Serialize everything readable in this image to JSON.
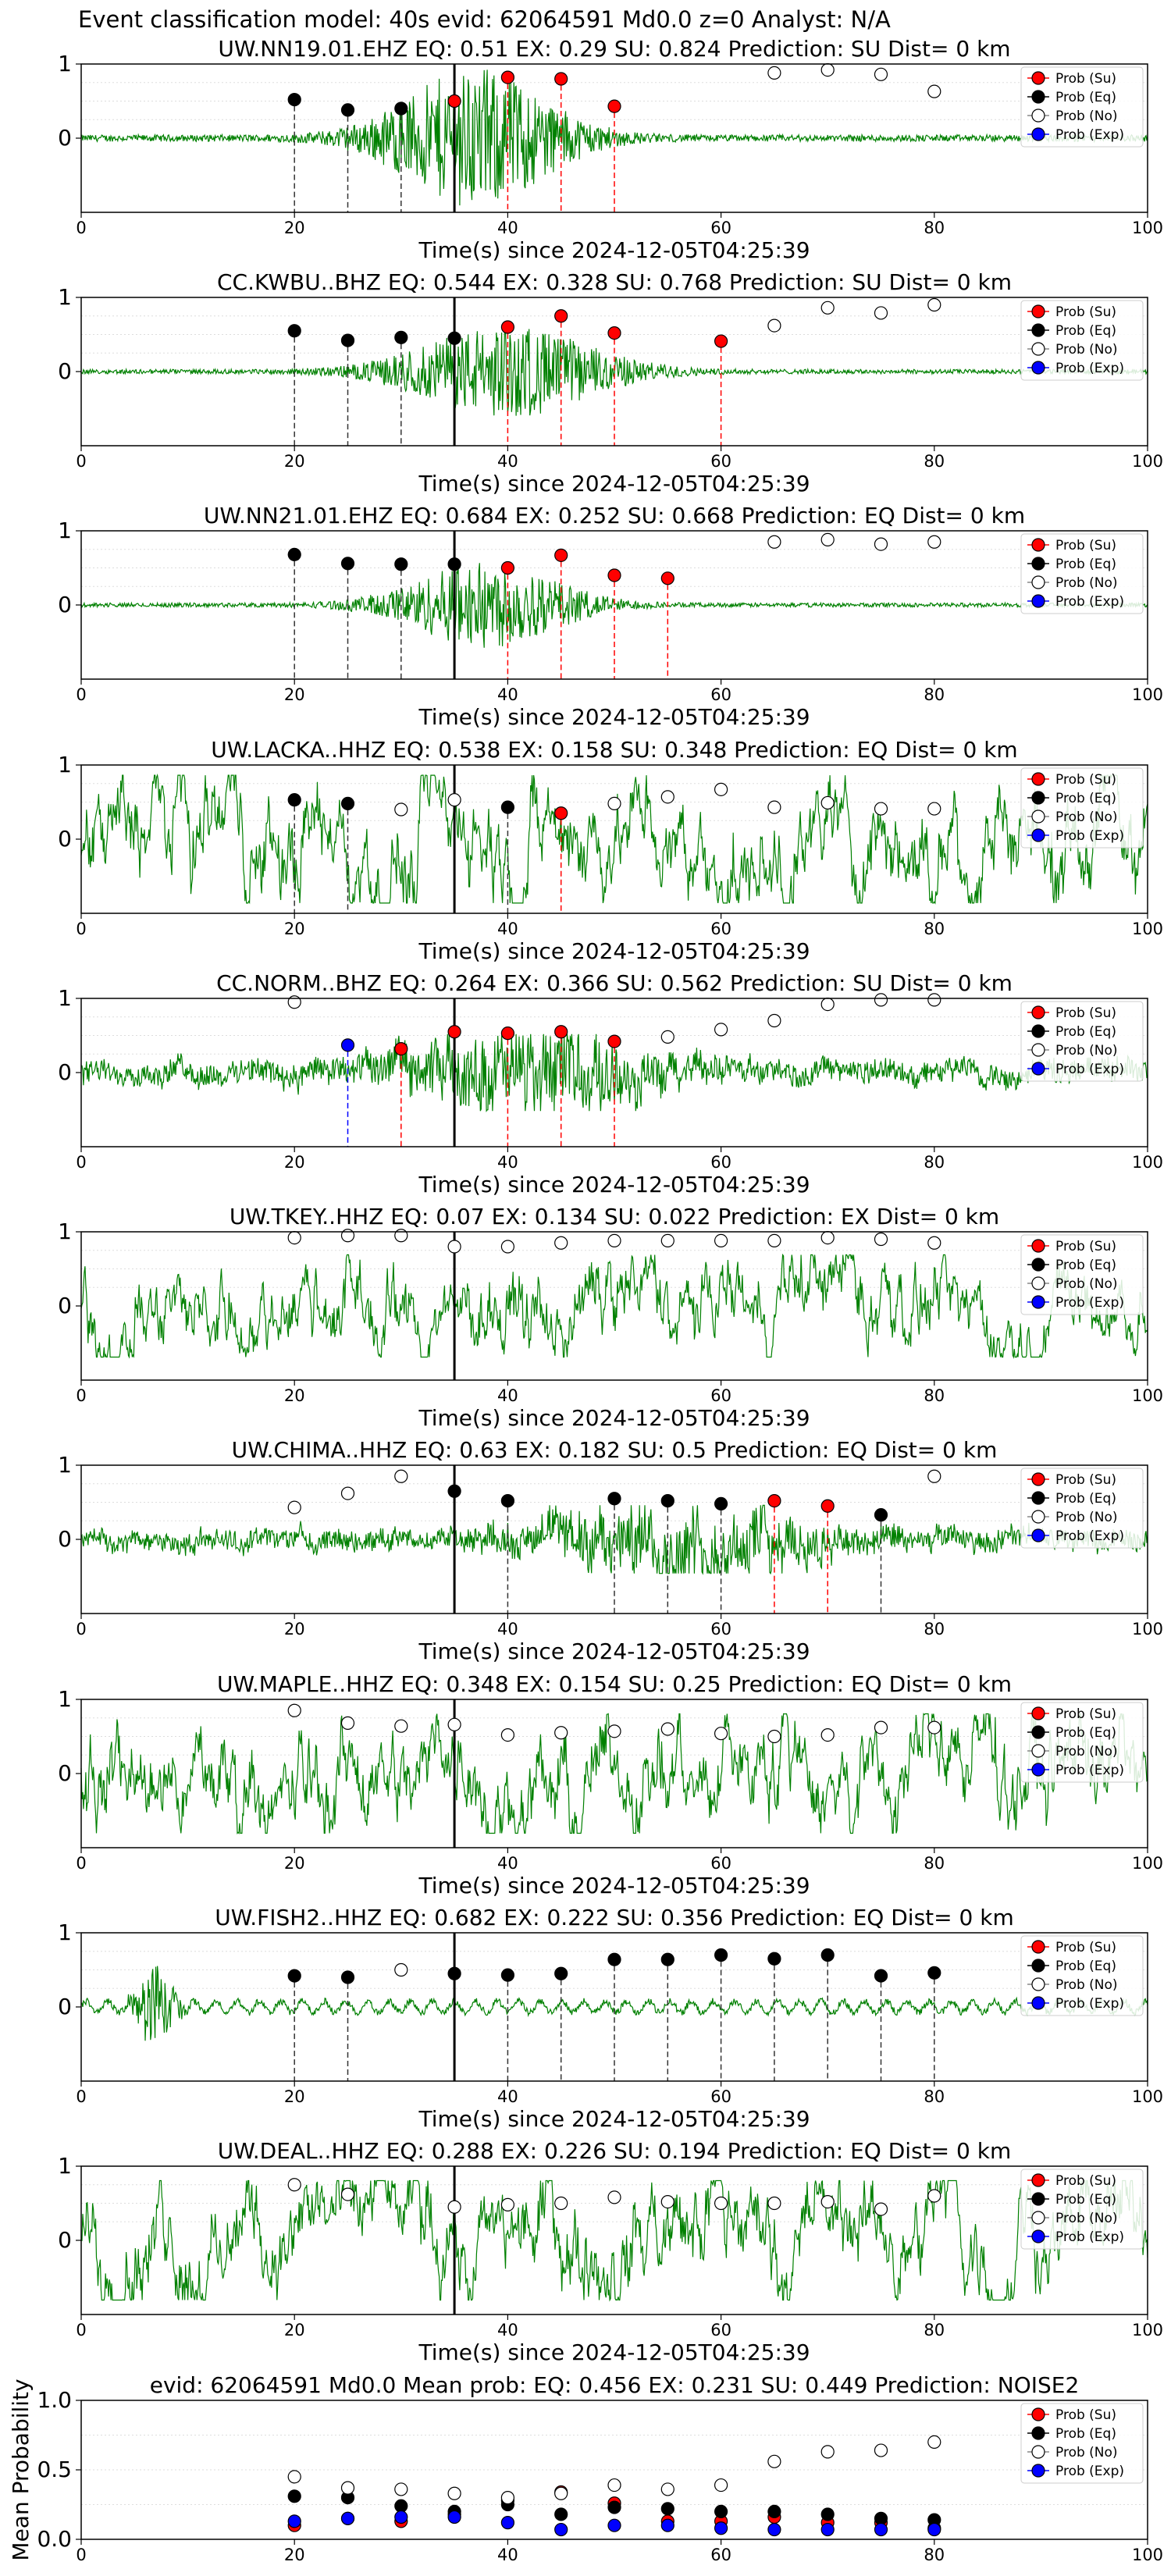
{
  "page": {
    "title": "Event classification model: 40s evid: 62064591 Md0.0 z=0 Analyst: N/A"
  },
  "legend_labels": [
    "Prob (Su)",
    "Prob (Eq)",
    "Prob (No)",
    "Prob (Exp)"
  ],
  "colors": {
    "su": "#ff0000",
    "eq": "#000000",
    "no": "#ffffff",
    "exp": "#0000ff",
    "trace": "#008000"
  },
  "chart_data": [
    {
      "type": "scatter",
      "station": "UW.NN19.01.EHZ",
      "title": "UW.NN19.01.EHZ   EQ: 0.51  EX: 0.29  SU: 0.824   Prediction: SU    Dist= 0 km",
      "xlabel": "Time(s) since 2024-12-05T04:25:39",
      "xlim": [
        0,
        100
      ],
      "ylim": [
        -1,
        1
      ],
      "xticks": [
        0,
        20,
        40,
        60,
        80,
        100
      ],
      "yticks": [
        1,
        0
      ],
      "waveform": "burst",
      "waveform_center": 37,
      "waveform_width": 6,
      "waveform_amp": 0.9,
      "ref_line": 35,
      "points": [
        {
          "x": 20,
          "y": 0.52,
          "cls": "eq"
        },
        {
          "x": 25,
          "y": 0.38,
          "cls": "eq"
        },
        {
          "x": 30,
          "y": 0.4,
          "cls": "eq"
        },
        {
          "x": 35,
          "y": 0.5,
          "cls": "su"
        },
        {
          "x": 40,
          "y": 0.82,
          "cls": "su"
        },
        {
          "x": 45,
          "y": 0.8,
          "cls": "su"
        },
        {
          "x": 50,
          "y": 0.43,
          "cls": "su"
        },
        {
          "x": 65,
          "y": 0.88,
          "cls": "no"
        },
        {
          "x": 70,
          "y": 0.92,
          "cls": "no"
        },
        {
          "x": 75,
          "y": 0.86,
          "cls": "no"
        },
        {
          "x": 80,
          "y": 0.63,
          "cls": "no"
        }
      ]
    },
    {
      "type": "scatter",
      "station": "CC.KWBU..BHZ",
      "title": "CC.KWBU..BHZ   EQ: 0.544  EX: 0.328  SU: 0.768   Prediction: SU    Dist= 0 km",
      "xlabel": "Time(s) since 2024-12-05T04:25:39",
      "xlim": [
        0,
        100
      ],
      "ylim": [
        -1,
        1
      ],
      "xticks": [
        0,
        20,
        40,
        60,
        80,
        100
      ],
      "yticks": [
        1,
        0
      ],
      "waveform": "burst",
      "waveform_center": 40,
      "waveform_width": 7,
      "waveform_amp": 0.6,
      "ref_line": 35,
      "points": [
        {
          "x": 20,
          "y": 0.55,
          "cls": "eq"
        },
        {
          "x": 25,
          "y": 0.42,
          "cls": "eq"
        },
        {
          "x": 30,
          "y": 0.46,
          "cls": "eq"
        },
        {
          "x": 35,
          "y": 0.45,
          "cls": "eq"
        },
        {
          "x": 40,
          "y": 0.6,
          "cls": "su"
        },
        {
          "x": 45,
          "y": 0.75,
          "cls": "su"
        },
        {
          "x": 50,
          "y": 0.52,
          "cls": "su"
        },
        {
          "x": 60,
          "y": 0.41,
          "cls": "su"
        },
        {
          "x": 65,
          "y": 0.62,
          "cls": "no"
        },
        {
          "x": 70,
          "y": 0.86,
          "cls": "no"
        },
        {
          "x": 75,
          "y": 0.79,
          "cls": "no"
        },
        {
          "x": 80,
          "y": 0.9,
          "cls": "no"
        }
      ]
    },
    {
      "type": "scatter",
      "station": "UW.NN21.01.EHZ",
      "title": "UW.NN21.01.EHZ   EQ: 0.684  EX: 0.252  SU: 0.668   Prediction: EQ    Dist= 0 km",
      "xlabel": "Time(s) since 2024-12-05T04:25:39",
      "xlim": [
        0,
        100
      ],
      "ylim": [
        -1,
        1
      ],
      "xticks": [
        0,
        20,
        40,
        60,
        80,
        100
      ],
      "yticks": [
        1,
        0
      ],
      "waveform": "burst",
      "waveform_center": 38,
      "waveform_width": 6,
      "waveform_amp": 0.55,
      "ref_line": 35,
      "points": [
        {
          "x": 20,
          "y": 0.68,
          "cls": "eq"
        },
        {
          "x": 25,
          "y": 0.56,
          "cls": "eq"
        },
        {
          "x": 30,
          "y": 0.55,
          "cls": "eq"
        },
        {
          "x": 35,
          "y": 0.55,
          "cls": "eq"
        },
        {
          "x": 40,
          "y": 0.5,
          "cls": "su"
        },
        {
          "x": 45,
          "y": 0.67,
          "cls": "su"
        },
        {
          "x": 50,
          "y": 0.4,
          "cls": "su"
        },
        {
          "x": 55,
          "y": 0.36,
          "cls": "su"
        },
        {
          "x": 65,
          "y": 0.85,
          "cls": "no"
        },
        {
          "x": 70,
          "y": 0.88,
          "cls": "no"
        },
        {
          "x": 75,
          "y": 0.82,
          "cls": "no"
        },
        {
          "x": 80,
          "y": 0.85,
          "cls": "no"
        }
      ]
    },
    {
      "type": "scatter",
      "station": "UW.LACKA..HHZ",
      "title": "UW.LACKA..HHZ   EQ: 0.538  EX: 0.158  SU: 0.348   Prediction: EQ    Dist= 0 km",
      "xlabel": "Time(s) since 2024-12-05T04:25:39",
      "xlim": [
        0,
        100
      ],
      "ylim": [
        -1,
        1
      ],
      "xticks": [
        0,
        20,
        40,
        60,
        80,
        100
      ],
      "yticks": [
        1,
        0
      ],
      "waveform": "noise",
      "waveform_amp": 0.75,
      "ref_line": 35,
      "points": [
        {
          "x": 20,
          "y": 0.53,
          "cls": "eq"
        },
        {
          "x": 25,
          "y": 0.48,
          "cls": "eq"
        },
        {
          "x": 30,
          "y": 0.4,
          "cls": "no"
        },
        {
          "x": 35,
          "y": 0.53,
          "cls": "no"
        },
        {
          "x": 40,
          "y": 0.43,
          "cls": "eq"
        },
        {
          "x": 45,
          "y": 0.35,
          "cls": "su"
        },
        {
          "x": 50,
          "y": 0.48,
          "cls": "no"
        },
        {
          "x": 55,
          "y": 0.57,
          "cls": "no"
        },
        {
          "x": 60,
          "y": 0.67,
          "cls": "no"
        },
        {
          "x": 65,
          "y": 0.43,
          "cls": "no"
        },
        {
          "x": 70,
          "y": 0.49,
          "cls": "no"
        },
        {
          "x": 75,
          "y": 0.41,
          "cls": "no"
        },
        {
          "x": 80,
          "y": 0.41,
          "cls": "no"
        }
      ]
    },
    {
      "type": "scatter",
      "station": "CC.NORM..BHZ",
      "title": "CC.NORM..BHZ   EQ: 0.264  EX: 0.366  SU: 0.562   Prediction: SU    Dist= 0 km",
      "xlabel": "Time(s) since 2024-12-05T04:25:39",
      "xlim": [
        0,
        100
      ],
      "ylim": [
        -1,
        1
      ],
      "xticks": [
        0,
        20,
        40,
        60,
        80,
        100
      ],
      "yticks": [
        1,
        0
      ],
      "waveform": "noise-burst",
      "waveform_center": 42,
      "waveform_width": 8,
      "waveform_amp": 0.45,
      "ref_line": 35,
      "points": [
        {
          "x": 20,
          "y": 0.95,
          "cls": "no"
        },
        {
          "x": 25,
          "y": 0.37,
          "cls": "exp"
        },
        {
          "x": 30,
          "y": 0.32,
          "cls": "su"
        },
        {
          "x": 35,
          "y": 0.55,
          "cls": "su"
        },
        {
          "x": 40,
          "y": 0.53,
          "cls": "su"
        },
        {
          "x": 45,
          "y": 0.55,
          "cls": "su"
        },
        {
          "x": 50,
          "y": 0.42,
          "cls": "su"
        },
        {
          "x": 55,
          "y": 0.48,
          "cls": "no"
        },
        {
          "x": 60,
          "y": 0.58,
          "cls": "no"
        },
        {
          "x": 65,
          "y": 0.7,
          "cls": "no"
        },
        {
          "x": 70,
          "y": 0.92,
          "cls": "no"
        },
        {
          "x": 75,
          "y": 0.98,
          "cls": "no"
        },
        {
          "x": 80,
          "y": 0.98,
          "cls": "no"
        }
      ]
    },
    {
      "type": "scatter",
      "station": "UW.TKEY..HHZ",
      "title": "UW.TKEY..HHZ   EQ: 0.07  EX: 0.134  SU: 0.022   Prediction: EX    Dist= 0 km",
      "xlabel": "Time(s) since 2024-12-05T04:25:39",
      "xlim": [
        0,
        100
      ],
      "ylim": [
        -1,
        1
      ],
      "xticks": [
        0,
        20,
        40,
        60,
        80,
        100
      ],
      "yticks": [
        1,
        0
      ],
      "waveform": "noise",
      "waveform_amp": 0.6,
      "ref_line": 35,
      "points": [
        {
          "x": 20,
          "y": 0.92,
          "cls": "no"
        },
        {
          "x": 25,
          "y": 0.95,
          "cls": "no"
        },
        {
          "x": 30,
          "y": 0.95,
          "cls": "no"
        },
        {
          "x": 35,
          "y": 0.8,
          "cls": "no"
        },
        {
          "x": 40,
          "y": 0.8,
          "cls": "no"
        },
        {
          "x": 45,
          "y": 0.85,
          "cls": "no"
        },
        {
          "x": 50,
          "y": 0.88,
          "cls": "no"
        },
        {
          "x": 55,
          "y": 0.88,
          "cls": "no"
        },
        {
          "x": 60,
          "y": 0.88,
          "cls": "no"
        },
        {
          "x": 65,
          "y": 0.88,
          "cls": "no"
        },
        {
          "x": 70,
          "y": 0.92,
          "cls": "no"
        },
        {
          "x": 75,
          "y": 0.9,
          "cls": "no"
        },
        {
          "x": 80,
          "y": 0.85,
          "cls": "no"
        }
      ]
    },
    {
      "type": "scatter",
      "station": "UW.CHIMA..HHZ",
      "title": "UW.CHIMA..HHZ   EQ: 0.63  EX: 0.182  SU: 0.5   Prediction: EQ    Dist= 0 km",
      "xlabel": "Time(s) since 2024-12-05T04:25:39",
      "xlim": [
        0,
        100
      ],
      "ylim": [
        -1,
        1
      ],
      "xticks": [
        0,
        20,
        40,
        60,
        80,
        100
      ],
      "yticks": [
        1,
        0
      ],
      "waveform": "noise-burst",
      "waveform_center": 57,
      "waveform_width": 9,
      "waveform_amp": 0.4,
      "ref_line": 35,
      "points": [
        {
          "x": 20,
          "y": 0.43,
          "cls": "no"
        },
        {
          "x": 25,
          "y": 0.62,
          "cls": "no"
        },
        {
          "x": 30,
          "y": 0.85,
          "cls": "no"
        },
        {
          "x": 35,
          "y": 0.65,
          "cls": "eq"
        },
        {
          "x": 40,
          "y": 0.52,
          "cls": "eq"
        },
        {
          "x": 50,
          "y": 0.55,
          "cls": "eq"
        },
        {
          "x": 55,
          "y": 0.52,
          "cls": "eq"
        },
        {
          "x": 60,
          "y": 0.48,
          "cls": "eq"
        },
        {
          "x": 65,
          "y": 0.52,
          "cls": "su"
        },
        {
          "x": 70,
          "y": 0.45,
          "cls": "su"
        },
        {
          "x": 75,
          "y": 0.33,
          "cls": "eq"
        },
        {
          "x": 80,
          "y": 0.85,
          "cls": "no"
        }
      ]
    },
    {
      "type": "scatter",
      "station": "UW.MAPLE..HHZ",
      "title": "UW.MAPLE..HHZ   EQ: 0.348  EX: 0.154  SU: 0.25   Prediction: EQ    Dist= 0 km",
      "xlabel": "Time(s) since 2024-12-05T04:25:39",
      "xlim": [
        0,
        100
      ],
      "ylim": [
        -1,
        1
      ],
      "xticks": [
        0,
        20,
        40,
        60,
        80,
        100
      ],
      "yticks": [
        1,
        0
      ],
      "waveform": "noise",
      "waveform_amp": 0.7,
      "ref_line": 35,
      "points": [
        {
          "x": 20,
          "y": 0.85,
          "cls": "no"
        },
        {
          "x": 25,
          "y": 0.68,
          "cls": "no"
        },
        {
          "x": 30,
          "y": 0.64,
          "cls": "no"
        },
        {
          "x": 35,
          "y": 0.66,
          "cls": "no"
        },
        {
          "x": 40,
          "y": 0.52,
          "cls": "no"
        },
        {
          "x": 45,
          "y": 0.55,
          "cls": "no"
        },
        {
          "x": 50,
          "y": 0.57,
          "cls": "no"
        },
        {
          "x": 55,
          "y": 0.6,
          "cls": "no"
        },
        {
          "x": 60,
          "y": 0.54,
          "cls": "no"
        },
        {
          "x": 65,
          "y": 0.5,
          "cls": "no"
        },
        {
          "x": 70,
          "y": 0.52,
          "cls": "no"
        },
        {
          "x": 75,
          "y": 0.62,
          "cls": "no"
        },
        {
          "x": 80,
          "y": 0.62,
          "cls": "no"
        }
      ]
    },
    {
      "type": "scatter",
      "station": "UW.FISH2..HHZ",
      "title": "UW.FISH2..HHZ   EQ: 0.682  EX: 0.222  SU: 0.356   Prediction: EQ    Dist= 0 km",
      "xlabel": "Time(s) since 2024-12-05T04:25:39",
      "xlim": [
        0,
        100
      ],
      "ylim": [
        -1,
        1
      ],
      "xticks": [
        0,
        20,
        40,
        60,
        80,
        100
      ],
      "yticks": [
        1,
        0
      ],
      "waveform": "quiet-spike",
      "waveform_center": 7,
      "waveform_width": 1.2,
      "waveform_amp": 0.95,
      "ref_line": 35,
      "points": [
        {
          "x": 20,
          "y": 0.42,
          "cls": "eq"
        },
        {
          "x": 25,
          "y": 0.4,
          "cls": "eq"
        },
        {
          "x": 30,
          "y": 0.5,
          "cls": "no"
        },
        {
          "x": 35,
          "y": 0.45,
          "cls": "eq"
        },
        {
          "x": 40,
          "y": 0.43,
          "cls": "eq"
        },
        {
          "x": 45,
          "y": 0.45,
          "cls": "eq"
        },
        {
          "x": 50,
          "y": 0.64,
          "cls": "eq"
        },
        {
          "x": 55,
          "y": 0.64,
          "cls": "eq"
        },
        {
          "x": 60,
          "y": 0.7,
          "cls": "eq"
        },
        {
          "x": 65,
          "y": 0.65,
          "cls": "eq"
        },
        {
          "x": 70,
          "y": 0.7,
          "cls": "eq"
        },
        {
          "x": 75,
          "y": 0.42,
          "cls": "eq"
        },
        {
          "x": 80,
          "y": 0.46,
          "cls": "eq"
        }
      ]
    },
    {
      "type": "scatter",
      "station": "UW.DEAL..HHZ",
      "title": "UW.DEAL..HHZ   EQ: 0.288  EX: 0.226  SU: 0.194   Prediction: EQ    Dist= 0 km",
      "xlabel": "Time(s) since 2024-12-05T04:25:39",
      "xlim": [
        0,
        100
      ],
      "ylim": [
        -1,
        1
      ],
      "xticks": [
        0,
        20,
        40,
        60,
        80,
        100
      ],
      "yticks": [
        1,
        0
      ],
      "waveform": "noise",
      "waveform_amp": 0.7,
      "ref_line": 35,
      "points": [
        {
          "x": 20,
          "y": 0.75,
          "cls": "no"
        },
        {
          "x": 25,
          "y": 0.62,
          "cls": "no"
        },
        {
          "x": 35,
          "y": 0.45,
          "cls": "no"
        },
        {
          "x": 40,
          "y": 0.48,
          "cls": "no"
        },
        {
          "x": 45,
          "y": 0.5,
          "cls": "no"
        },
        {
          "x": 50,
          "y": 0.58,
          "cls": "no"
        },
        {
          "x": 55,
          "y": 0.52,
          "cls": "no"
        },
        {
          "x": 60,
          "y": 0.5,
          "cls": "no"
        },
        {
          "x": 65,
          "y": 0.5,
          "cls": "no"
        },
        {
          "x": 70,
          "y": 0.52,
          "cls": "no"
        },
        {
          "x": 75,
          "y": 0.42,
          "cls": "no"
        },
        {
          "x": 80,
          "y": 0.6,
          "cls": "no"
        }
      ]
    },
    {
      "type": "scatter",
      "station": "mean",
      "title": "evid: 62064591  Md0.0   Mean prob:   EQ: 0.456  EX: 0.231  SU: 0.449   Prediction: NOISE2",
      "xlabel": "",
      "ylabel": "Mean Probability",
      "xlim": [
        0,
        100
      ],
      "ylim": [
        0,
        1
      ],
      "xticks": [
        0,
        20,
        40,
        60,
        80,
        100
      ],
      "yticks": [
        1.0,
        0.5,
        0.0
      ],
      "ytick_labels": [
        "1.0",
        "0.5",
        "0.0"
      ],
      "series": [
        {
          "name": "Prob (Su)",
          "cls": "su",
          "x": [
            20,
            25,
            30,
            35,
            40,
            45,
            50,
            55,
            60,
            65,
            70,
            75,
            80
          ],
          "y": [
            0.1,
            0.15,
            0.13,
            0.18,
            0.28,
            0.34,
            0.26,
            0.13,
            0.13,
            0.16,
            0.12,
            0.12,
            0.08
          ]
        },
        {
          "name": "Prob (Eq)",
          "cls": "eq",
          "x": [
            20,
            25,
            30,
            35,
            40,
            45,
            50,
            55,
            60,
            65,
            70,
            75,
            80
          ],
          "y": [
            0.31,
            0.3,
            0.24,
            0.2,
            0.25,
            0.18,
            0.23,
            0.22,
            0.2,
            0.2,
            0.18,
            0.15,
            0.14
          ]
        },
        {
          "name": "Prob (No)",
          "cls": "no",
          "x": [
            20,
            25,
            30,
            35,
            40,
            45,
            50,
            55,
            60,
            65,
            70,
            75,
            80
          ],
          "y": [
            0.45,
            0.37,
            0.36,
            0.33,
            0.3,
            0.33,
            0.39,
            0.36,
            0.39,
            0.56,
            0.63,
            0.64,
            0.7
          ]
        },
        {
          "name": "Prob (Exp)",
          "cls": "exp",
          "x": [
            20,
            25,
            30,
            35,
            40,
            45,
            50,
            55,
            60,
            65,
            70,
            75,
            80
          ],
          "y": [
            0.13,
            0.15,
            0.16,
            0.16,
            0.12,
            0.07,
            0.1,
            0.1,
            0.08,
            0.07,
            0.07,
            0.07,
            0.07
          ]
        }
      ]
    }
  ]
}
